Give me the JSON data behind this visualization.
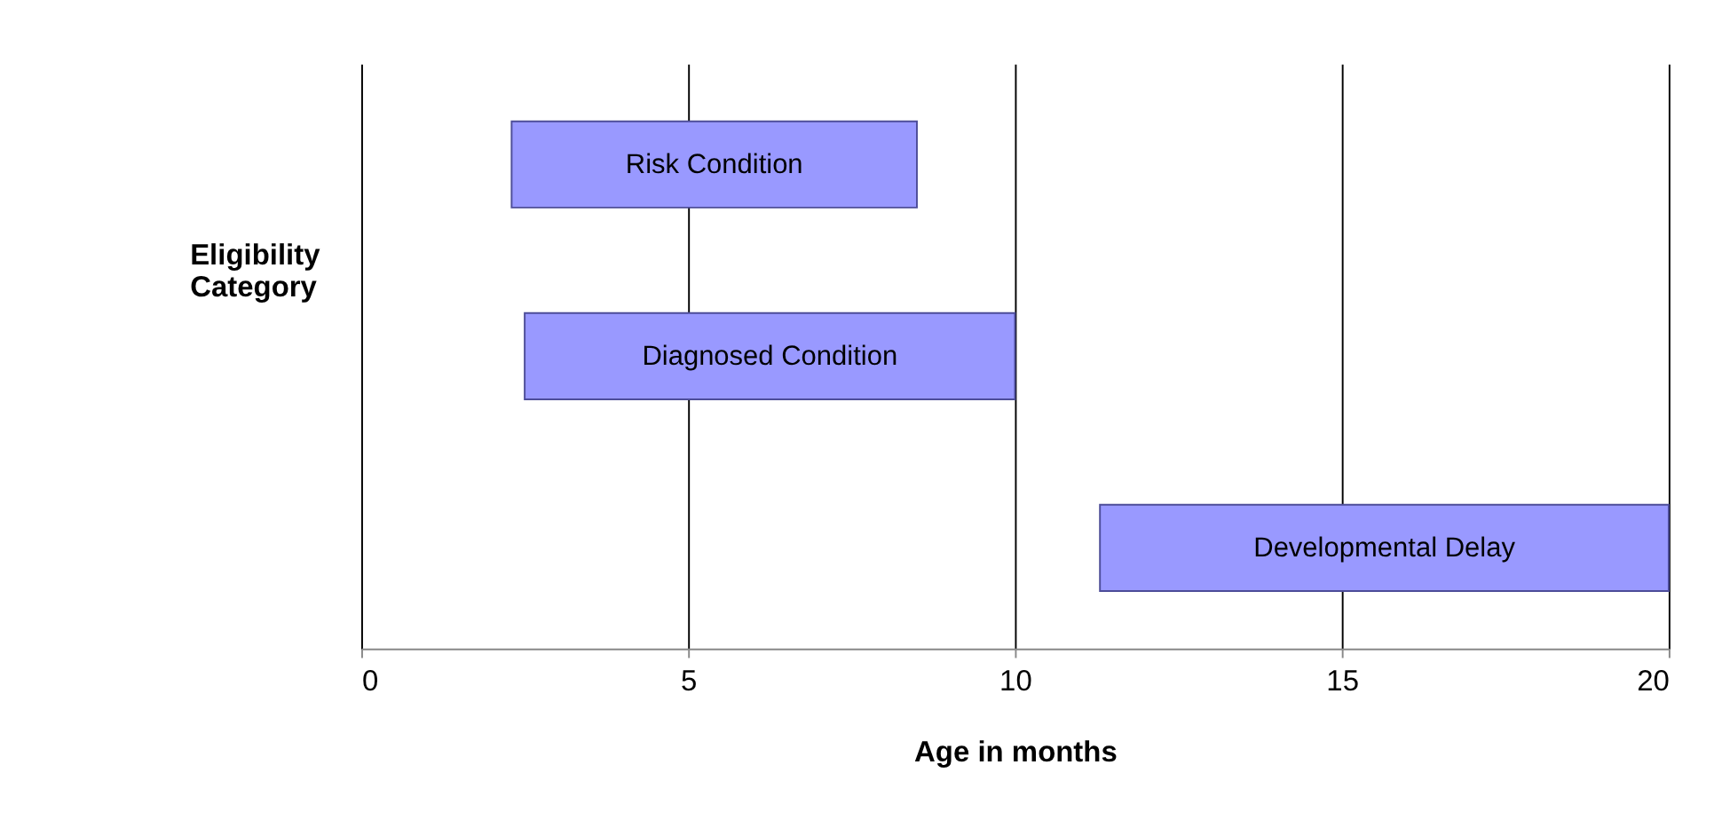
{
  "chart_data": {
    "type": "bar",
    "orientation": "horizontal",
    "categories": [
      "Risk Condition",
      "Diagnosed Condition",
      "Developmental Delay"
    ],
    "base": [
      2.3,
      2.5,
      11.3
    ],
    "values": [
      6.2,
      7.5,
      8.7
    ],
    "color": "#9999ff",
    "xlim": [
      0,
      20
    ],
    "xticks": [
      0,
      5,
      10,
      15,
      20
    ],
    "xlabel": "Age in months",
    "ylabel": "Eligibility Category",
    "grid": "x",
    "tick_labels": "x"
  }
}
